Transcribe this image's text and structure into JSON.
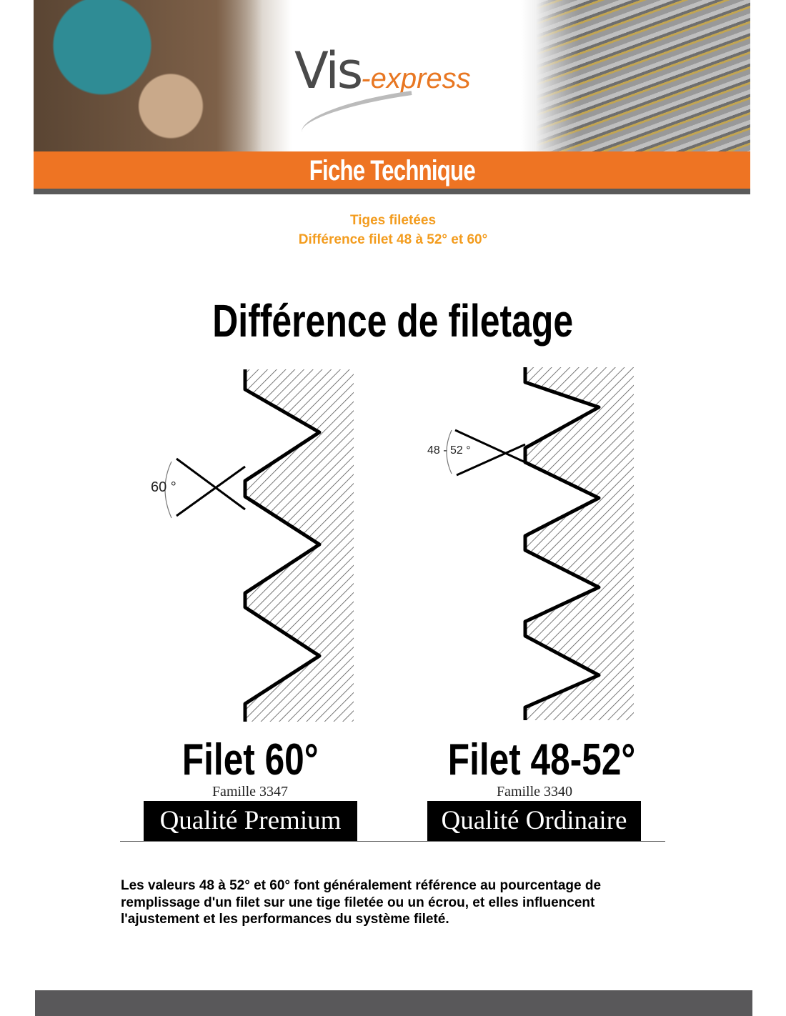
{
  "header": {
    "logo_main": "Vis",
    "logo_sub": "-express",
    "banner_title": "Fiche Technique"
  },
  "subtitle": {
    "line1": "Tiges filetées",
    "line2": "Différence filet 48 à 52° et 60°"
  },
  "diagram": {
    "title": "Différence de filetage",
    "left": {
      "angle_label": "60 °",
      "name": "Filet 60°",
      "family": "Famille 3347",
      "quality": "Qualité Premium"
    },
    "right": {
      "angle_label": "48 - 52 °",
      "name": "Filet 48-52°",
      "family": "Famille 3340",
      "quality": "Qualité Ordinaire"
    }
  },
  "body": {
    "text": "Les valeurs 48 à 52° et 60° font généralement référence au pourcentage de remplissage d'un filet sur une tige filetée ou un écrou, et elles influencent l'ajustement et les performances du système fileté."
  },
  "colors": {
    "orange": "#ee7423",
    "subtitle": "#f39c1e",
    "grey": "#59585a"
  }
}
